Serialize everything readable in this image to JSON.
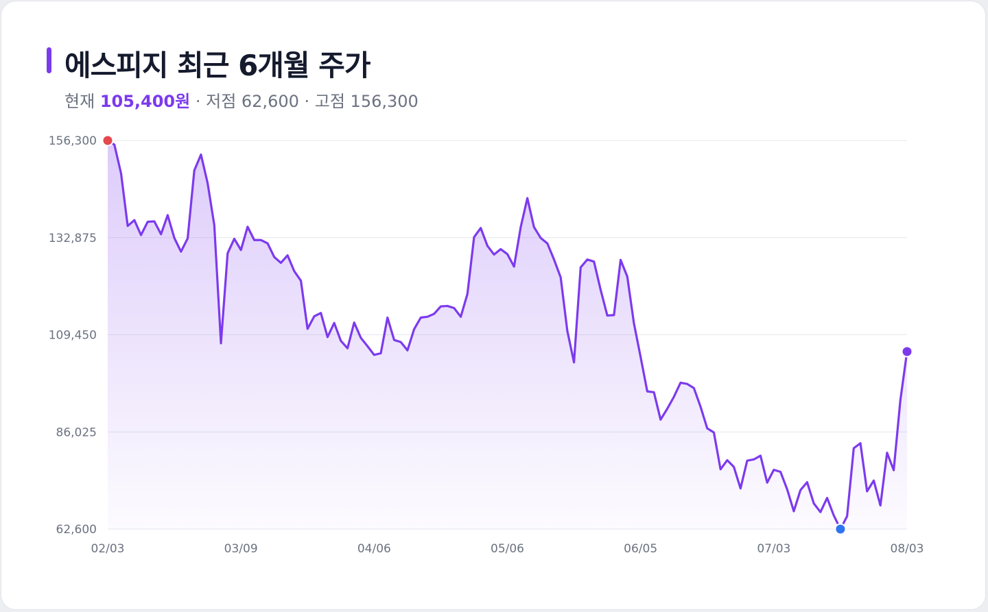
{
  "header": {
    "title": "에스피지 최근 6개월 주가",
    "current_label": "현재",
    "current_value": "105,400원",
    "sep1": " · ",
    "low_text": "저점 62,600",
    "sep2": " · ",
    "high_text": "고점 156,300"
  },
  "colors": {
    "accent": "#7c3aed",
    "high_marker": "#e5484d",
    "low_marker": "#2f74f0",
    "current_marker": "#7c3aed",
    "grid": "#e6e7eb",
    "text": "#151a2d",
    "muted": "#6b7280"
  },
  "chart_data": {
    "type": "area",
    "title": "에스피지 최근 6개월 주가",
    "xlabel": "",
    "ylabel": "",
    "ylim": [
      62600,
      156300
    ],
    "y_ticks": [
      62600,
      86025,
      109450,
      132875,
      156300
    ],
    "y_tick_labels": [
      "62,600",
      "86,025",
      "109,450",
      "132,875",
      "156,300"
    ],
    "x_tick_labels": [
      "02/03",
      "03/09",
      "04/06",
      "05/06",
      "06/05",
      "07/03",
      "08/03"
    ],
    "x_tick_index": [
      0,
      20,
      40,
      60,
      80,
      100,
      120
    ],
    "grid": true,
    "markers": {
      "high_index": 0,
      "low_index": 110,
      "current_index": 120
    },
    "values": [
      156300,
      155300,
      148400,
      135700,
      137100,
      133500,
      136700,
      136800,
      133700,
      138300,
      132800,
      129500,
      132700,
      149100,
      152900,
      146000,
      135900,
      107400,
      129100,
      132600,
      129900,
      135500,
      132300,
      132300,
      131500,
      128200,
      126800,
      128600,
      124800,
      122500,
      110900,
      113900,
      114700,
      108900,
      112300,
      108000,
      106200,
      112400,
      108700,
      106700,
      104600,
      105000,
      113600,
      108200,
      107700,
      105700,
      110800,
      113600,
      113800,
      114500,
      116300,
      116400,
      115900,
      113800,
      119300,
      133000,
      135200,
      130900,
      128800,
      130100,
      128900,
      125900,
      135400,
      142400,
      135400,
      132800,
      131500,
      127600,
      123300,
      110400,
      102800,
      125700,
      127600,
      127100,
      120300,
      114100,
      114200,
      127500,
      123500,
      112200,
      104100,
      95800,
      95600,
      89000,
      91600,
      94500,
      97900,
      97600,
      96600,
      92100,
      86900,
      85900,
      77000,
      79200,
      77600,
      72400,
      79100,
      79400,
      80300,
      73800,
      76900,
      76400,
      72200,
      66900,
      72000,
      73900,
      68800,
      66700,
      70100,
      65900,
      62600,
      65700,
      82100,
      83300,
      71700,
      74300,
      68300,
      81000,
      76800,
      93700,
      105400
    ]
  }
}
